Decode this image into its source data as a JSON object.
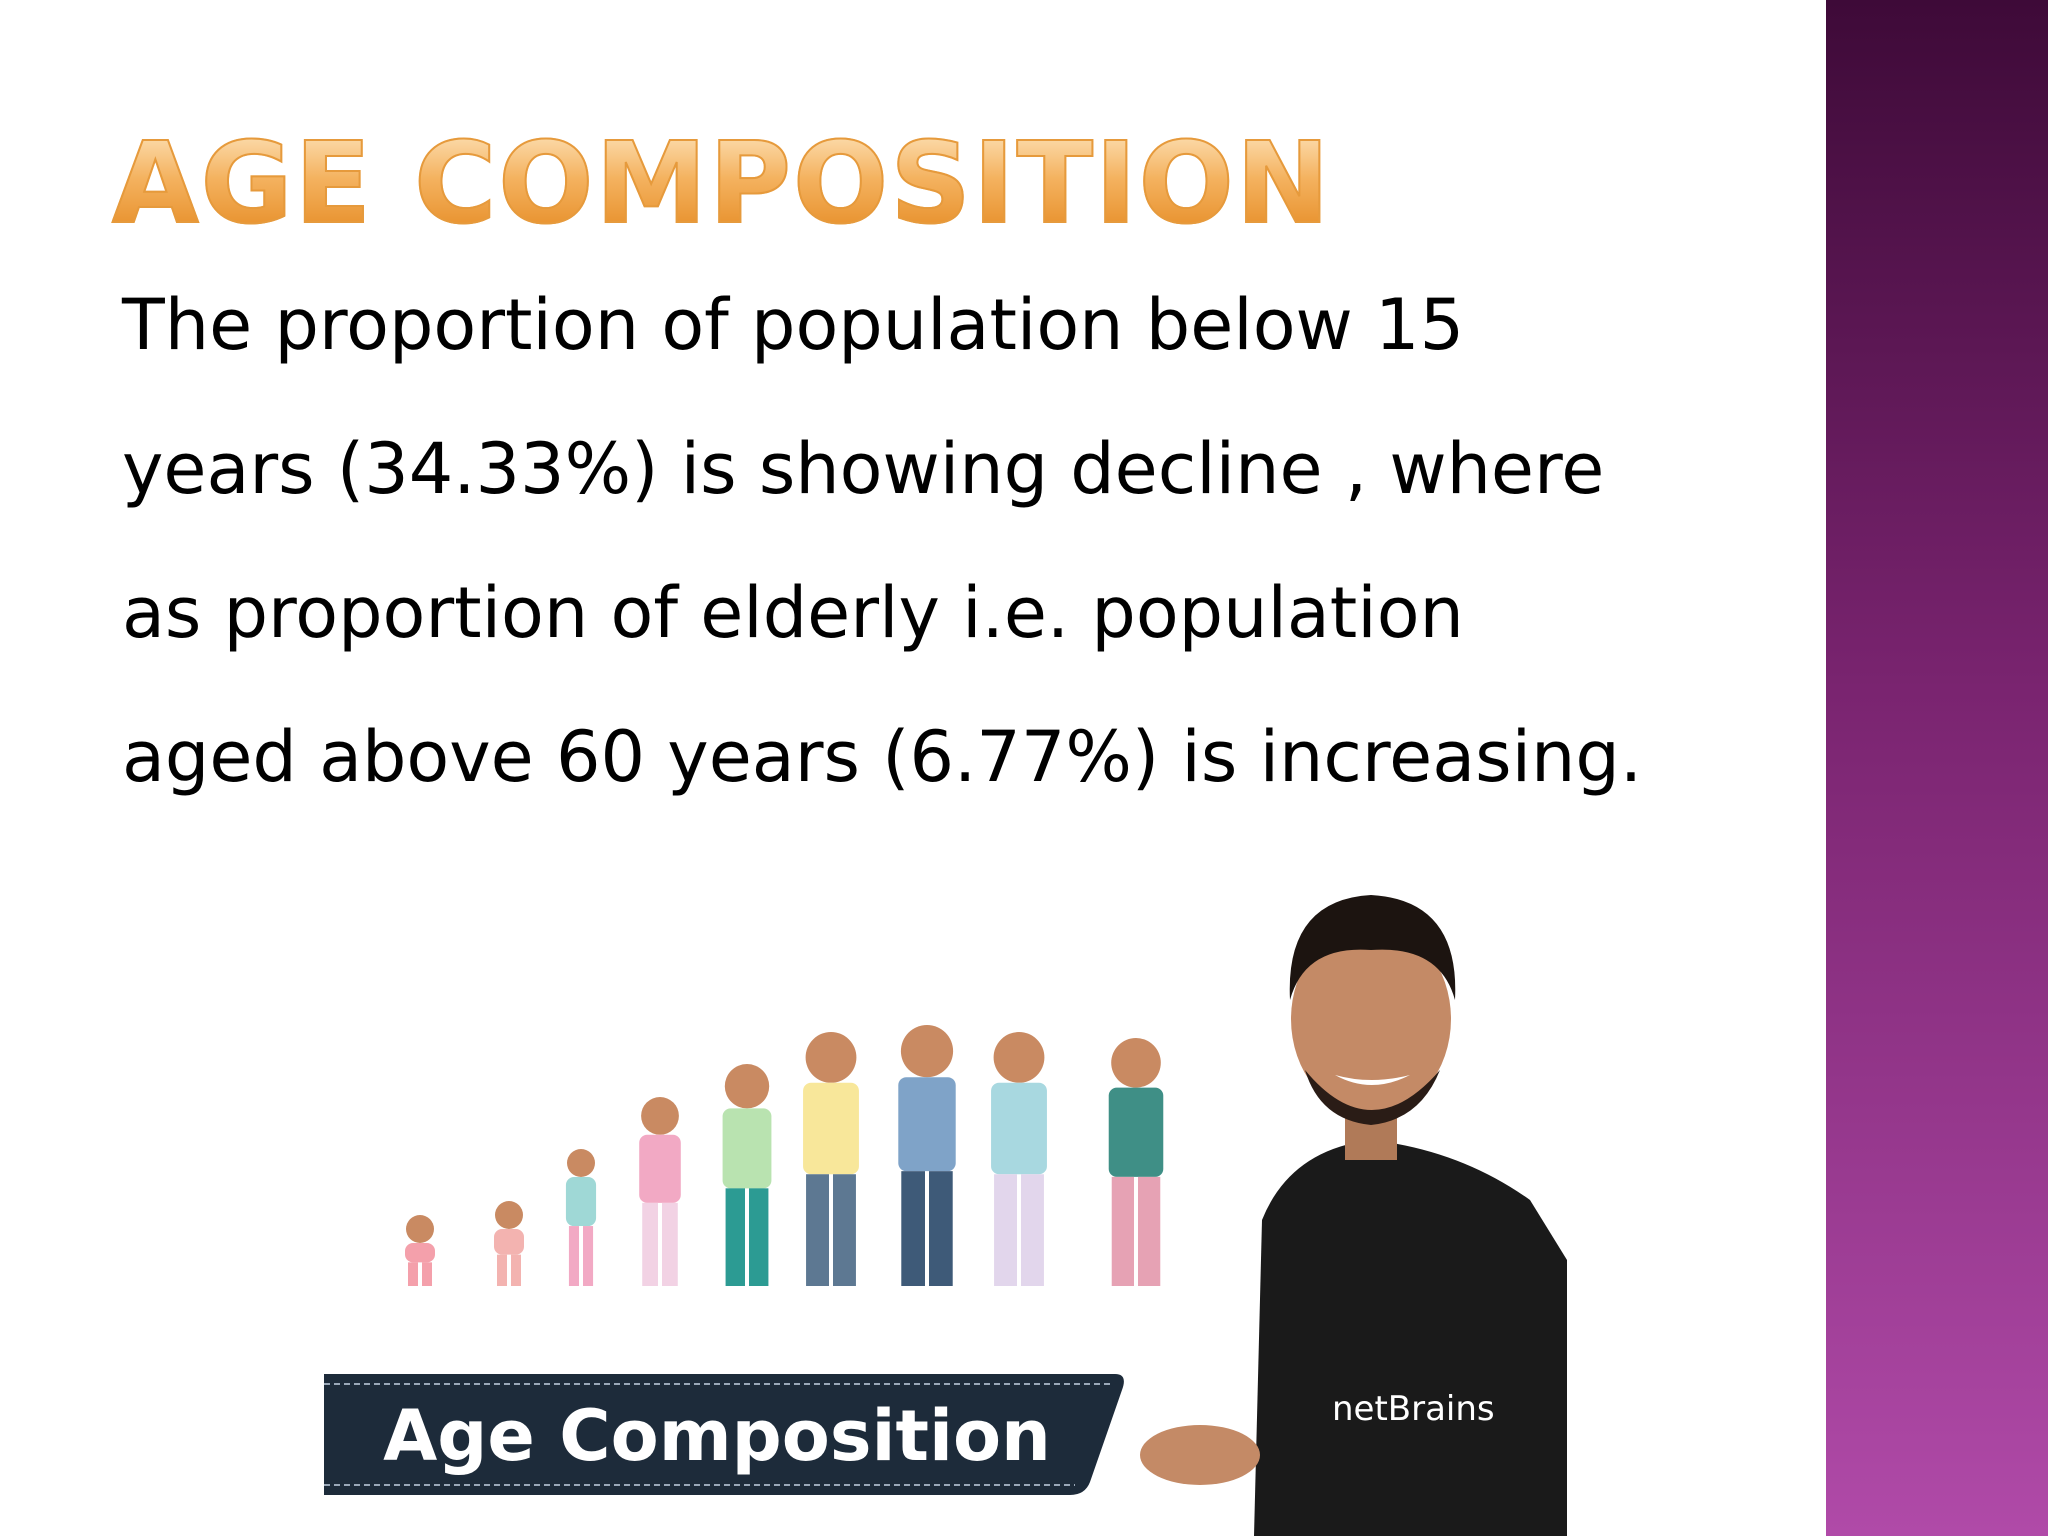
{
  "slide": {
    "title": "AGE COMPOSITION",
    "body_lines": [
      "The proportion of population below 15",
      "years (34.33%) is showing decline , where",
      "as proportion of elderly i.e. population",
      "aged above 60 years (6.77%) is increasing."
    ],
    "image": {
      "badge": "Age Composition",
      "shirt_logo": "netBrains"
    }
  }
}
